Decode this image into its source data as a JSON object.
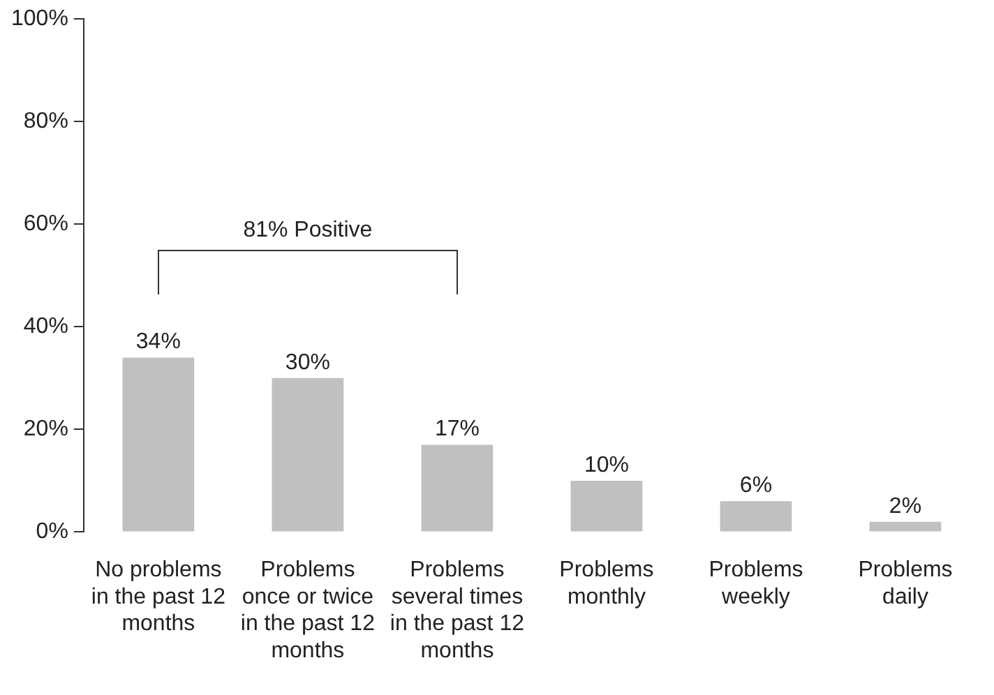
{
  "chart_data": {
    "type": "bar",
    "categories": [
      "No problems in the past 12 months",
      "Problems once or twice in the past 12 months",
      "Problems several times in the past 12 months",
      "Problems monthly",
      "Problems weekly",
      "Problems daily"
    ],
    "values": [
      34,
      30,
      17,
      10,
      6,
      2
    ],
    "color": "#c0c0c0",
    "ylim": [
      0,
      100
    ],
    "yticks": [
      {
        "value": 0,
        "label": "0%"
      },
      {
        "value": 20,
        "label": "20%"
      },
      {
        "value": 40,
        "label": "40%"
      },
      {
        "value": 60,
        "label": "60%"
      },
      {
        "value": 80,
        "label": "80%"
      },
      {
        "value": 100,
        "label": "100%"
      }
    ],
    "value_labels": [
      "34%",
      "30%",
      "17%",
      "10%",
      "6%",
      "2%"
    ],
    "annotations": [
      "81% Positive"
    ],
    "grid": false,
    "legend": false
  }
}
